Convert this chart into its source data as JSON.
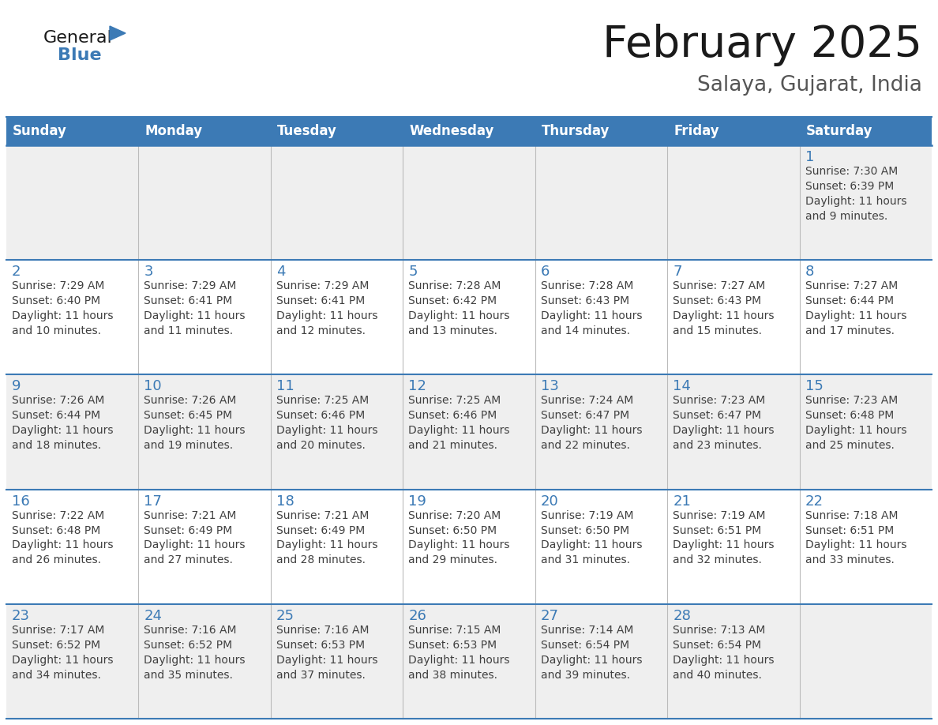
{
  "title": "February 2025",
  "subtitle": "Salaya, Gujarat, India",
  "header_bg": "#3c7ab5",
  "header_text_color": "#ffffff",
  "days_of_week": [
    "Sunday",
    "Monday",
    "Tuesday",
    "Wednesday",
    "Thursday",
    "Friday",
    "Saturday"
  ],
  "row_odd_bg": "#efefef",
  "row_even_bg": "#ffffff",
  "day_number_color": "#3c7ab5",
  "cell_text_color": "#404040",
  "border_color": "#3c7ab5",
  "light_border_color": "#bbbbbb",
  "logo_general_color": "#1a1a1a",
  "logo_blue_color": "#3c7ab5",
  "logo_triangle_color": "#3c7ab5",
  "title_color": "#1a1a1a",
  "subtitle_color": "#555555",
  "calendar_data": [
    [
      null,
      null,
      null,
      null,
      null,
      null,
      {
        "day": "1",
        "sunrise": "7:30 AM",
        "sunset": "6:39 PM",
        "daylight": "11 hours\nand 9 minutes."
      }
    ],
    [
      {
        "day": "2",
        "sunrise": "7:29 AM",
        "sunset": "6:40 PM",
        "daylight": "11 hours\nand 10 minutes."
      },
      {
        "day": "3",
        "sunrise": "7:29 AM",
        "sunset": "6:41 PM",
        "daylight": "11 hours\nand 11 minutes."
      },
      {
        "day": "4",
        "sunrise": "7:29 AM",
        "sunset": "6:41 PM",
        "daylight": "11 hours\nand 12 minutes."
      },
      {
        "day": "5",
        "sunrise": "7:28 AM",
        "sunset": "6:42 PM",
        "daylight": "11 hours\nand 13 minutes."
      },
      {
        "day": "6",
        "sunrise": "7:28 AM",
        "sunset": "6:43 PM",
        "daylight": "11 hours\nand 14 minutes."
      },
      {
        "day": "7",
        "sunrise": "7:27 AM",
        "sunset": "6:43 PM",
        "daylight": "11 hours\nand 15 minutes."
      },
      {
        "day": "8",
        "sunrise": "7:27 AM",
        "sunset": "6:44 PM",
        "daylight": "11 hours\nand 17 minutes."
      }
    ],
    [
      {
        "day": "9",
        "sunrise": "7:26 AM",
        "sunset": "6:44 PM",
        "daylight": "11 hours\nand 18 minutes."
      },
      {
        "day": "10",
        "sunrise": "7:26 AM",
        "sunset": "6:45 PM",
        "daylight": "11 hours\nand 19 minutes."
      },
      {
        "day": "11",
        "sunrise": "7:25 AM",
        "sunset": "6:46 PM",
        "daylight": "11 hours\nand 20 minutes."
      },
      {
        "day": "12",
        "sunrise": "7:25 AM",
        "sunset": "6:46 PM",
        "daylight": "11 hours\nand 21 minutes."
      },
      {
        "day": "13",
        "sunrise": "7:24 AM",
        "sunset": "6:47 PM",
        "daylight": "11 hours\nand 22 minutes."
      },
      {
        "day": "14",
        "sunrise": "7:23 AM",
        "sunset": "6:47 PM",
        "daylight": "11 hours\nand 23 minutes."
      },
      {
        "day": "15",
        "sunrise": "7:23 AM",
        "sunset": "6:48 PM",
        "daylight": "11 hours\nand 25 minutes."
      }
    ],
    [
      {
        "day": "16",
        "sunrise": "7:22 AM",
        "sunset": "6:48 PM",
        "daylight": "11 hours\nand 26 minutes."
      },
      {
        "day": "17",
        "sunrise": "7:21 AM",
        "sunset": "6:49 PM",
        "daylight": "11 hours\nand 27 minutes."
      },
      {
        "day": "18",
        "sunrise": "7:21 AM",
        "sunset": "6:49 PM",
        "daylight": "11 hours\nand 28 minutes."
      },
      {
        "day": "19",
        "sunrise": "7:20 AM",
        "sunset": "6:50 PM",
        "daylight": "11 hours\nand 29 minutes."
      },
      {
        "day": "20",
        "sunrise": "7:19 AM",
        "sunset": "6:50 PM",
        "daylight": "11 hours\nand 31 minutes."
      },
      {
        "day": "21",
        "sunrise": "7:19 AM",
        "sunset": "6:51 PM",
        "daylight": "11 hours\nand 32 minutes."
      },
      {
        "day": "22",
        "sunrise": "7:18 AM",
        "sunset": "6:51 PM",
        "daylight": "11 hours\nand 33 minutes."
      }
    ],
    [
      {
        "day": "23",
        "sunrise": "7:17 AM",
        "sunset": "6:52 PM",
        "daylight": "11 hours\nand 34 minutes."
      },
      {
        "day": "24",
        "sunrise": "7:16 AM",
        "sunset": "6:52 PM",
        "daylight": "11 hours\nand 35 minutes."
      },
      {
        "day": "25",
        "sunrise": "7:16 AM",
        "sunset": "6:53 PM",
        "daylight": "11 hours\nand 37 minutes."
      },
      {
        "day": "26",
        "sunrise": "7:15 AM",
        "sunset": "6:53 PM",
        "daylight": "11 hours\nand 38 minutes."
      },
      {
        "day": "27",
        "sunrise": "7:14 AM",
        "sunset": "6:54 PM",
        "daylight": "11 hours\nand 39 minutes."
      },
      {
        "day": "28",
        "sunrise": "7:13 AM",
        "sunset": "6:54 PM",
        "daylight": "11 hours\nand 40 minutes."
      },
      null
    ]
  ]
}
